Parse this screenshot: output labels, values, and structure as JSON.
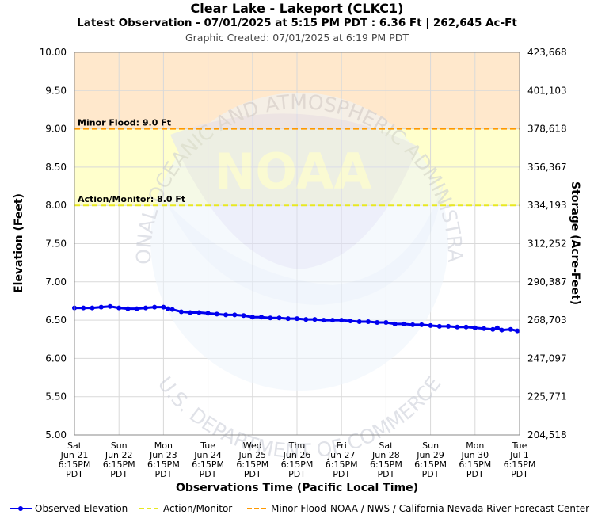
{
  "header": {
    "title": "Clear Lake - Lakeport (CLKC1)",
    "subtitle": "Latest Observation - 07/01/2025 at 5:15 PM PDT : 6.36 Ft | 262,645 Ac-Ft",
    "created": "Graphic Created: 07/01/2025 at 6:19 PM PDT"
  },
  "chart_data": {
    "type": "line",
    "xlabel": "Observations Time (Pacific Local Time)",
    "ylabel": "Elevation (Feet)",
    "y2label": "Storage (Acre-Feet)",
    "ylim": [
      5.0,
      10.0
    ],
    "y_ticks": [
      "5.00",
      "5.50",
      "6.00",
      "6.50",
      "7.00",
      "7.50",
      "8.00",
      "8.50",
      "9.00",
      "9.50",
      "10.00"
    ],
    "y2_ticks": [
      "204,518",
      "225,771",
      "247,097",
      "268,703",
      "290,387",
      "312,252",
      "334,193",
      "356,367",
      "378,618",
      "401,103",
      "423,668"
    ],
    "x_ticks": [
      [
        "Sat",
        "Jun 21",
        "6:15PM",
        "PDT"
      ],
      [
        "Sun",
        "Jun 22",
        "6:15PM",
        "PDT"
      ],
      [
        "Mon",
        "Jun 23",
        "6:15PM",
        "PDT"
      ],
      [
        "Tue",
        "Jun 24",
        "6:15PM",
        "PDT"
      ],
      [
        "Wed",
        "Jun 25",
        "6:15PM",
        "PDT"
      ],
      [
        "Thu",
        "Jun 26",
        "6:15PM",
        "PDT"
      ],
      [
        "Fri",
        "Jun 27",
        "6:15PM",
        "PDT"
      ],
      [
        "Sat",
        "Jun 28",
        "6:15PM",
        "PDT"
      ],
      [
        "Sun",
        "Jun 29",
        "6:15PM",
        "PDT"
      ],
      [
        "Mon",
        "Jun 30",
        "6:15PM",
        "PDT"
      ],
      [
        "Tue",
        "Jul 1",
        "6:15PM",
        "PDT"
      ]
    ],
    "thresholds": [
      {
        "name": "Minor Flood",
        "value": 9.0,
        "label": "Minor Flood: 9.0 Ft",
        "color": "#ff9900"
      },
      {
        "name": "Action/Monitor",
        "value": 8.0,
        "label": "Action/Monitor: 8.0 Ft",
        "color": "#e8e820"
      }
    ],
    "bands": [
      {
        "from": 9.0,
        "to": 10.0,
        "color": "#ffe8cc"
      },
      {
        "from": 8.0,
        "to": 9.0,
        "color": "#ffffcc"
      }
    ],
    "series": [
      {
        "name": "Observed Elevation",
        "color": "#0000ee",
        "x_days": [
          0,
          0.2,
          0.4,
          0.6,
          0.8,
          1.0,
          1.2,
          1.4,
          1.6,
          1.8,
          2.0,
          2.1,
          2.2,
          2.4,
          2.6,
          2.8,
          3.0,
          3.2,
          3.4,
          3.6,
          3.8,
          4.0,
          4.2,
          4.4,
          4.6,
          4.8,
          5.0,
          5.2,
          5.4,
          5.6,
          5.8,
          6.0,
          6.2,
          6.4,
          6.6,
          6.8,
          7.0,
          7.2,
          7.4,
          7.6,
          7.8,
          8.0,
          8.2,
          8.4,
          8.6,
          8.8,
          9.0,
          9.2,
          9.4,
          9.5,
          9.6,
          9.8,
          9.95
        ],
        "values": [
          6.66,
          6.66,
          6.66,
          6.67,
          6.68,
          6.66,
          6.65,
          6.65,
          6.66,
          6.67,
          6.67,
          6.65,
          6.64,
          6.61,
          6.6,
          6.6,
          6.59,
          6.58,
          6.57,
          6.57,
          6.56,
          6.54,
          6.54,
          6.53,
          6.53,
          6.52,
          6.52,
          6.51,
          6.51,
          6.5,
          6.5,
          6.5,
          6.49,
          6.48,
          6.48,
          6.47,
          6.47,
          6.45,
          6.45,
          6.44,
          6.44,
          6.43,
          6.42,
          6.42,
          6.41,
          6.41,
          6.4,
          6.39,
          6.38,
          6.4,
          6.37,
          6.38,
          6.36
        ]
      }
    ]
  },
  "legend": {
    "observed": "Observed Elevation",
    "action": "Action/Monitor",
    "minor": "Minor Flood",
    "credit": "NOAA / NWS / California Nevada River Forecast Center"
  },
  "watermark": {
    "arc_top": "NATIONAL OCEANIC AND ATMOSPHERIC ADMINISTRATION",
    "arc_bottom": "U.S. DEPARTMENT OF COMMERCE",
    "logo": "NOAA"
  },
  "colors": {
    "observed": "#0000ee",
    "action": "#e8e820",
    "minor": "#ff9900",
    "grid": "#d9d9d9"
  }
}
